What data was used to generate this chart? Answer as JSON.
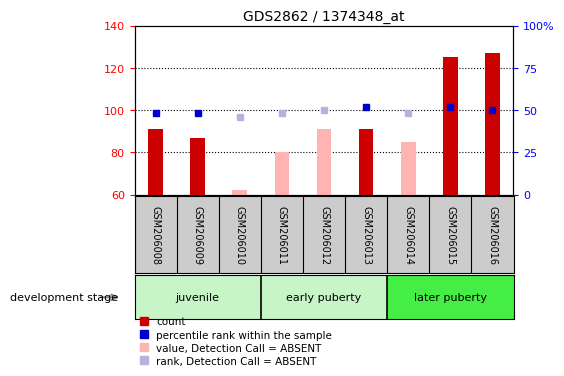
{
  "title": "GDS2862 / 1374348_at",
  "samples": [
    "GSM206008",
    "GSM206009",
    "GSM206010",
    "GSM206011",
    "GSM206012",
    "GSM206013",
    "GSM206014",
    "GSM206015",
    "GSM206016"
  ],
  "count_values": [
    91,
    87,
    null,
    null,
    null,
    91,
    null,
    125,
    127
  ],
  "count_absent_values": [
    null,
    null,
    62,
    80,
    91,
    null,
    85,
    null,
    null
  ],
  "rank_values": [
    48,
    48,
    null,
    null,
    null,
    52,
    null,
    52,
    50
  ],
  "rank_absent_values": [
    null,
    null,
    46,
    48,
    50,
    null,
    48,
    null,
    null
  ],
  "ylim_left": [
    60,
    140
  ],
  "ylim_right": [
    0,
    100
  ],
  "yticks_left": [
    60,
    80,
    100,
    120,
    140
  ],
  "ytick_labels_left": [
    "60",
    "80",
    "100",
    "120",
    "140"
  ],
  "ytick_labels_right": [
    "0",
    "25",
    "50",
    "75",
    "100%"
  ],
  "bar_width": 0.35,
  "count_color": "#cc0000",
  "count_absent_color": "#ffb3b3",
  "rank_color": "#0000cc",
  "rank_absent_color": "#b3b3dd",
  "group_colors": [
    "#c8f5c8",
    "#c8f5c8",
    "#44ee44"
  ],
  "group_labels": [
    "juvenile",
    "early puberty",
    "later puberty"
  ],
  "group_ranges": [
    [
      0,
      3
    ],
    [
      3,
      6
    ],
    [
      6,
      9
    ]
  ],
  "legend_items": [
    {
      "label": "count",
      "color": "#cc0000"
    },
    {
      "label": "percentile rank within the sample",
      "color": "#0000cc"
    },
    {
      "label": "value, Detection Call = ABSENT",
      "color": "#ffb3b3"
    },
    {
      "label": "rank, Detection Call = ABSENT",
      "color": "#b3b3dd"
    }
  ]
}
